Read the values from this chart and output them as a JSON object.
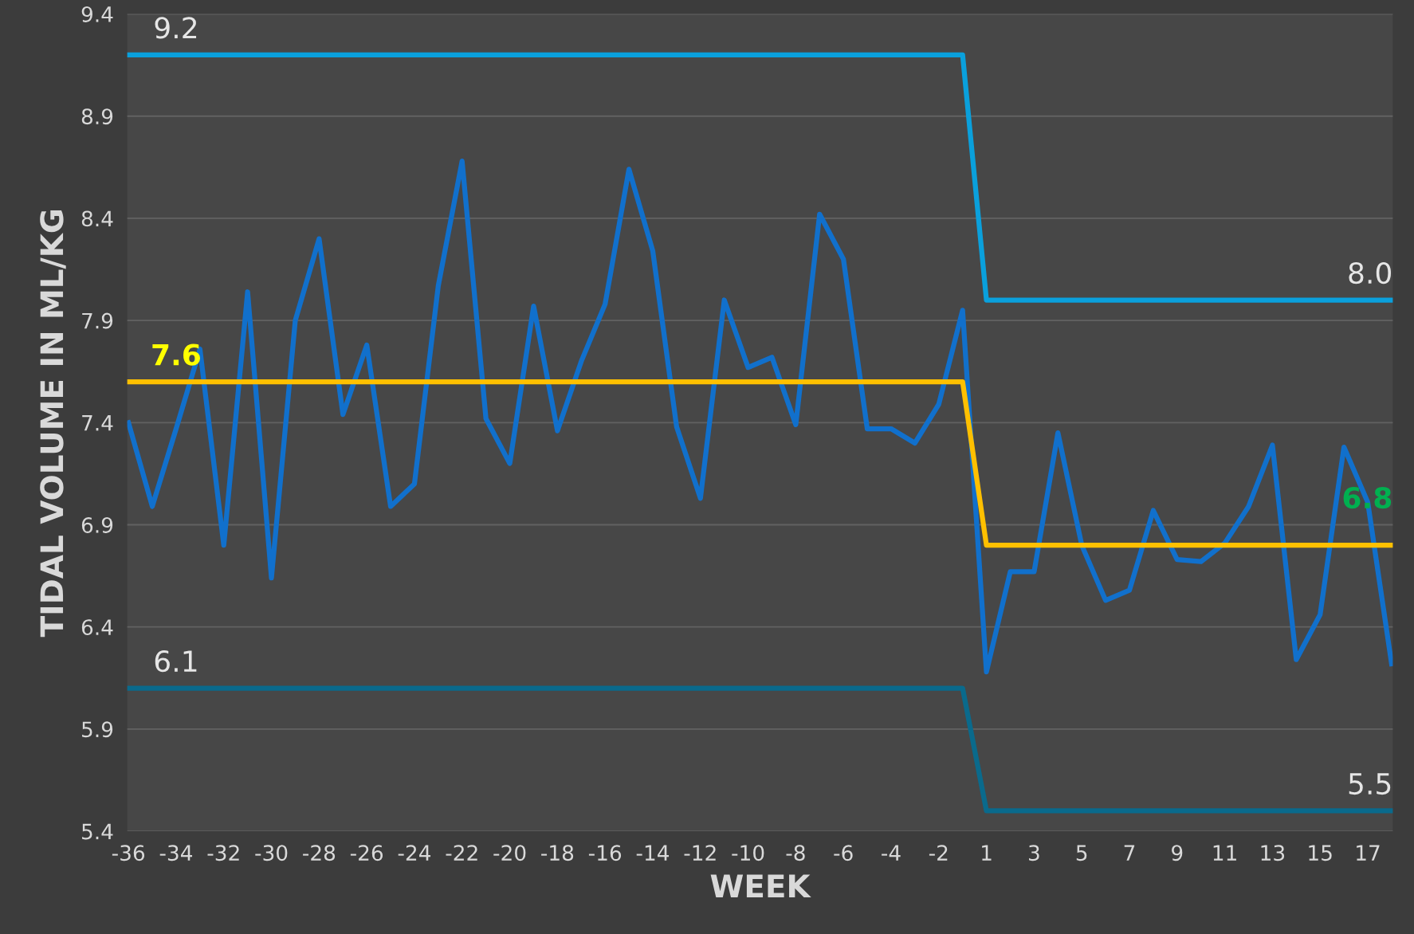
{
  "chart_data": {
    "type": "line",
    "xlabel": "WEEK",
    "ylabel": "TIDAL VOLUME IN ML/KG",
    "categories": [
      "-36",
      null,
      "-34",
      null,
      "-32",
      null,
      "-30",
      null,
      "-28",
      null,
      "-26",
      null,
      "-24",
      null,
      "-22",
      null,
      "-20",
      null,
      "-18",
      null,
      "-16",
      null,
      "-14",
      null,
      "-12",
      null,
      "-10",
      null,
      "-8",
      null,
      "-6",
      null,
      "-4",
      null,
      "-2",
      null,
      "1",
      null,
      "3",
      null,
      "5",
      null,
      "7",
      null,
      "9",
      null,
      "11",
      null,
      "13",
      null,
      "15",
      null,
      "17",
      null
    ],
    "series": [
      {
        "color": "#1170cc",
        "values": [
          7.4,
          6.99,
          7.37,
          7.76,
          6.8,
          8.04,
          6.64,
          7.9,
          8.3,
          7.44,
          7.78,
          6.99,
          7.1,
          8.07,
          8.68,
          7.42,
          7.2,
          7.97,
          7.36,
          7.7,
          7.98,
          8.64,
          8.24,
          7.38,
          7.03,
          8.0,
          7.67,
          7.72,
          7.39,
          8.42,
          8.2,
          7.37,
          7.37,
          7.3,
          7.49,
          7.95,
          6.18,
          6.67,
          6.67,
          7.35,
          6.8,
          6.53,
          6.58,
          6.97,
          6.73,
          6.72,
          6.81,
          6.99,
          7.29,
          6.24,
          6.46,
          7.28,
          7.01,
          6.22
        ]
      },
      {
        "color": "#0aa0dc",
        "values": [
          9.2,
          9.2,
          9.2,
          9.2,
          9.2,
          9.2,
          9.2,
          9.2,
          9.2,
          9.2,
          9.2,
          9.2,
          9.2,
          9.2,
          9.2,
          9.2,
          9.2,
          9.2,
          9.2,
          9.2,
          9.2,
          9.2,
          9.2,
          9.2,
          9.2,
          9.2,
          9.2,
          9.2,
          9.2,
          9.2,
          9.2,
          9.2,
          9.2,
          9.2,
          9.2,
          9.2,
          8.0,
          8.0,
          8.0,
          8.0,
          8.0,
          8.0,
          8.0,
          8.0,
          8.0,
          8.0,
          8.0,
          8.0,
          8.0,
          8.0,
          8.0,
          8.0,
          8.0,
          8.0
        ],
        "value_labels": [
          null,
          null,
          "9.2",
          null,
          null,
          null,
          null,
          null,
          null,
          null,
          null,
          null,
          null,
          null,
          null,
          null,
          null,
          null,
          null,
          null,
          null,
          null,
          null,
          null,
          null,
          null,
          null,
          null,
          null,
          null,
          null,
          null,
          null,
          null,
          null,
          null,
          null,
          null,
          null,
          null,
          null,
          null,
          null,
          null,
          null,
          null,
          null,
          null,
          null,
          null,
          null,
          null,
          null,
          "8.0"
        ]
      },
      {
        "color": "#ffc000",
        "values": [
          7.6,
          7.6,
          7.6,
          7.6,
          7.6,
          7.6,
          7.6,
          7.6,
          7.6,
          7.6,
          7.6,
          7.6,
          7.6,
          7.6,
          7.6,
          7.6,
          7.6,
          7.6,
          7.6,
          7.6,
          7.6,
          7.6,
          7.6,
          7.6,
          7.6,
          7.6,
          7.6,
          7.6,
          7.6,
          7.6,
          7.6,
          7.6,
          7.6,
          7.6,
          7.6,
          7.6,
          6.8,
          6.8,
          6.8,
          6.8,
          6.8,
          6.8,
          6.8,
          6.8,
          6.8,
          6.8,
          6.8,
          6.8,
          6.8,
          6.8,
          6.8,
          6.8,
          6.8,
          6.8
        ],
        "value_labels": [
          null,
          null,
          "7.6",
          null,
          null,
          null,
          null,
          null,
          null,
          null,
          null,
          null,
          null,
          null,
          null,
          null,
          null,
          null,
          null,
          null,
          null,
          null,
          null,
          null,
          null,
          null,
          null,
          null,
          null,
          null,
          null,
          null,
          null,
          null,
          null,
          null,
          null,
          null,
          null,
          null,
          null,
          null,
          null,
          null,
          null,
          null,
          null,
          null,
          null,
          null,
          null,
          null,
          null,
          "6.8"
        ]
      },
      {
        "color": "#0a6a8c",
        "values": [
          6.1,
          6.1,
          6.1,
          6.1,
          6.1,
          6.1,
          6.1,
          6.1,
          6.1,
          6.1,
          6.1,
          6.1,
          6.1,
          6.1,
          6.1,
          6.1,
          6.1,
          6.1,
          6.1,
          6.1,
          6.1,
          6.1,
          6.1,
          6.1,
          6.1,
          6.1,
          6.1,
          6.1,
          6.1,
          6.1,
          6.1,
          6.1,
          6.1,
          6.1,
          6.1,
          6.1,
          5.5,
          5.5,
          5.5,
          5.5,
          5.5,
          5.5,
          5.5,
          5.5,
          5.5,
          5.5,
          5.5,
          5.5,
          5.5,
          5.5,
          5.5,
          5.5,
          5.5,
          5.5
        ],
        "value_labels": [
          null,
          null,
          "6.1",
          null,
          null,
          null,
          null,
          null,
          null,
          null,
          null,
          null,
          null,
          null,
          null,
          null,
          null,
          null,
          null,
          null,
          null,
          null,
          null,
          null,
          null,
          null,
          null,
          null,
          null,
          null,
          null,
          null,
          null,
          null,
          null,
          null,
          null,
          null,
          null,
          null,
          null,
          null,
          null,
          null,
          null,
          null,
          null,
          null,
          null,
          null,
          null,
          null,
          null,
          "5.5"
        ]
      }
    ],
    "ylim": [
      5.4,
      9.4
    ],
    "yticks": [
      5.4,
      5.9,
      6.4,
      6.9,
      7.4,
      7.9,
      8.4,
      8.9,
      9.4
    ],
    "grid": "y",
    "legend": false,
    "marker": "none",
    "line_style": "solid"
  }
}
